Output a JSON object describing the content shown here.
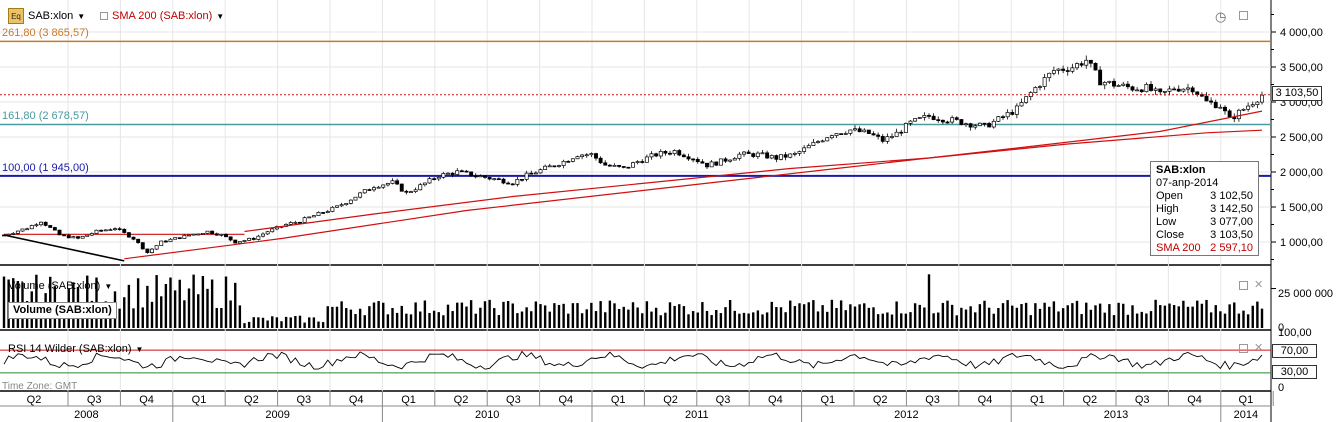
{
  "header": {
    "symbol": "SAB:xlon",
    "icon": "Eq",
    "indicator": "SMA 200 (SAB:xlon)",
    "colors": {
      "indicator": "#c00000"
    }
  },
  "fib_levels": [
    {
      "label": "261,80 (3 865,57)",
      "value": 3865.57,
      "color": "#c8782a"
    },
    {
      "label": "161,80 (2 678,57)",
      "value": 2678.57,
      "color": "#4a9aa0"
    },
    {
      "label": "100,00 (1 945,00)",
      "value": 1945.0,
      "color": "#1a1aa8"
    }
  ],
  "info_box": {
    "title": "SAB:xlon",
    "date": "07-anp-2014",
    "rows": [
      {
        "label": "Open",
        "value": "3 102,50"
      },
      {
        "label": "High",
        "value": "3 142,50"
      },
      {
        "label": "Low",
        "value": "3 077,00"
      },
      {
        "label": "Close",
        "value": "3 103,50"
      },
      {
        "label": "SMA 200",
        "value": "2 597,10"
      }
    ]
  },
  "last_price_label": "3 103,50",
  "volume_panel": {
    "title": "Volume (SAB:xlon)",
    "box_label": "Volume (SAB:xlon)",
    "axis_labels": [
      "25 000 000",
      "0"
    ]
  },
  "rsi_panel": {
    "title": "RSI 14 Wilder (SAB:xlon)",
    "axis_labels": [
      "100,00",
      "0"
    ],
    "level_labels": [
      "70,00",
      "30,00"
    ]
  },
  "timezone": "Time Zone: GMT",
  "chart_data": {
    "type": "candlestick",
    "symbol": "SAB:xlon",
    "price_axis": {
      "ticks": [
        1000,
        1500,
        2000,
        2500,
        3000,
        3500,
        4000
      ],
      "tick_labels": [
        "1 000,00",
        "1 500,00",
        "2 000,00",
        "2 500,00",
        "3 000,00",
        "3 500,00",
        "4 000,00"
      ],
      "range": [
        660,
        4330
      ]
    },
    "time_axis": {
      "quarters": [
        "Q2",
        "Q3",
        "Q4",
        "Q1",
        "Q2",
        "Q3",
        "Q4",
        "Q1",
        "Q2",
        "Q3",
        "Q4",
        "Q1",
        "Q2",
        "Q3",
        "Q4",
        "Q1",
        "Q2",
        "Q3",
        "Q4",
        "Q1",
        "Q2",
        "Q3",
        "Q4",
        "Q1"
      ],
      "years": [
        "2008",
        "2009",
        "2010",
        "2011",
        "2012",
        "2013",
        "2014"
      ]
    },
    "weekly_close": {
      "x_range": [
        "2008-04",
        "2014-04"
      ],
      "anchors": [
        [
          0,
          1100
        ],
        [
          5,
          1200
        ],
        [
          8,
          1300
        ],
        [
          12,
          1100
        ],
        [
          16,
          1050
        ],
        [
          20,
          1150
        ],
        [
          24,
          1200
        ],
        [
          28,
          1050
        ],
        [
          31,
          850
        ],
        [
          34,
          1000
        ],
        [
          37,
          1050
        ],
        [
          40,
          1100
        ],
        [
          44,
          1150
        ],
        [
          47,
          1100
        ],
        [
          50,
          1000
        ],
        [
          54,
          1050
        ],
        [
          57,
          1150
        ],
        [
          61,
          1250
        ],
        [
          64,
          1300
        ],
        [
          68,
          1400
        ],
        [
          72,
          1500
        ],
        [
          76,
          1650
        ],
        [
          80,
          1800
        ],
        [
          84,
          1850
        ],
        [
          87,
          1700
        ],
        [
          90,
          1800
        ],
        [
          94,
          1950
        ],
        [
          98,
          2000
        ],
        [
          102,
          1950
        ],
        [
          106,
          1900
        ],
        [
          110,
          1850
        ],
        [
          113,
          1950
        ],
        [
          117,
          2050
        ],
        [
          121,
          2150
        ],
        [
          124,
          2250
        ],
        [
          127,
          2250
        ],
        [
          130,
          2100
        ],
        [
          134,
          2050
        ],
        [
          137,
          2150
        ],
        [
          141,
          2250
        ],
        [
          145,
          2300
        ],
        [
          149,
          2200
        ],
        [
          152,
          2100
        ],
        [
          155,
          2150
        ],
        [
          159,
          2250
        ],
        [
          163,
          2250
        ],
        [
          167,
          2200
        ],
        [
          171,
          2250
        ],
        [
          175,
          2400
        ],
        [
          179,
          2550
        ],
        [
          183,
          2600
        ],
        [
          187,
          2550
        ],
        [
          190,
          2450
        ],
        [
          193,
          2550
        ],
        [
          196,
          2700
        ],
        [
          200,
          2800
        ],
        [
          204,
          2750
        ],
        [
          208,
          2700
        ],
        [
          212,
          2650
        ],
        [
          215,
          2750
        ],
        [
          219,
          2900
        ],
        [
          223,
          3200
        ],
        [
          227,
          3450
        ],
        [
          231,
          3500
        ],
        [
          234,
          3600
        ],
        [
          237,
          3300
        ],
        [
          240,
          3250
        ],
        [
          244,
          3200
        ],
        [
          247,
          3200
        ],
        [
          250,
          3100
        ],
        [
          253,
          3200
        ],
        [
          257,
          3200
        ],
        [
          260,
          3000
        ],
        [
          263,
          2950
        ],
        [
          265,
          2750
        ],
        [
          268,
          2900
        ],
        [
          272,
          3100
        ]
      ]
    },
    "sma200_anchors": [
      [
        52,
        1150
      ],
      [
        80,
        1400
      ],
      [
        110,
        1650
      ],
      [
        140,
        1850
      ],
      [
        170,
        2050
      ],
      [
        200,
        2200
      ],
      [
        230,
        2400
      ],
      [
        260,
        2560
      ],
      [
        272,
        2597.1
      ]
    ],
    "trend_line": {
      "from": [
        0,
        1100
      ],
      "to": [
        26,
        730
      ]
    },
    "support_line": {
      "from": [
        0,
        1110
      ],
      "to": [
        52,
        1110
      ]
    },
    "volume": {
      "axis_max": 38000000,
      "ticks": [
        0,
        25000000
      ],
      "weekly_range": [
        5000000,
        38000000
      ]
    },
    "rsi": {
      "levels": [
        30,
        70
      ],
      "range": [
        0,
        100
      ],
      "weekly_range": [
        30,
        80
      ]
    }
  }
}
